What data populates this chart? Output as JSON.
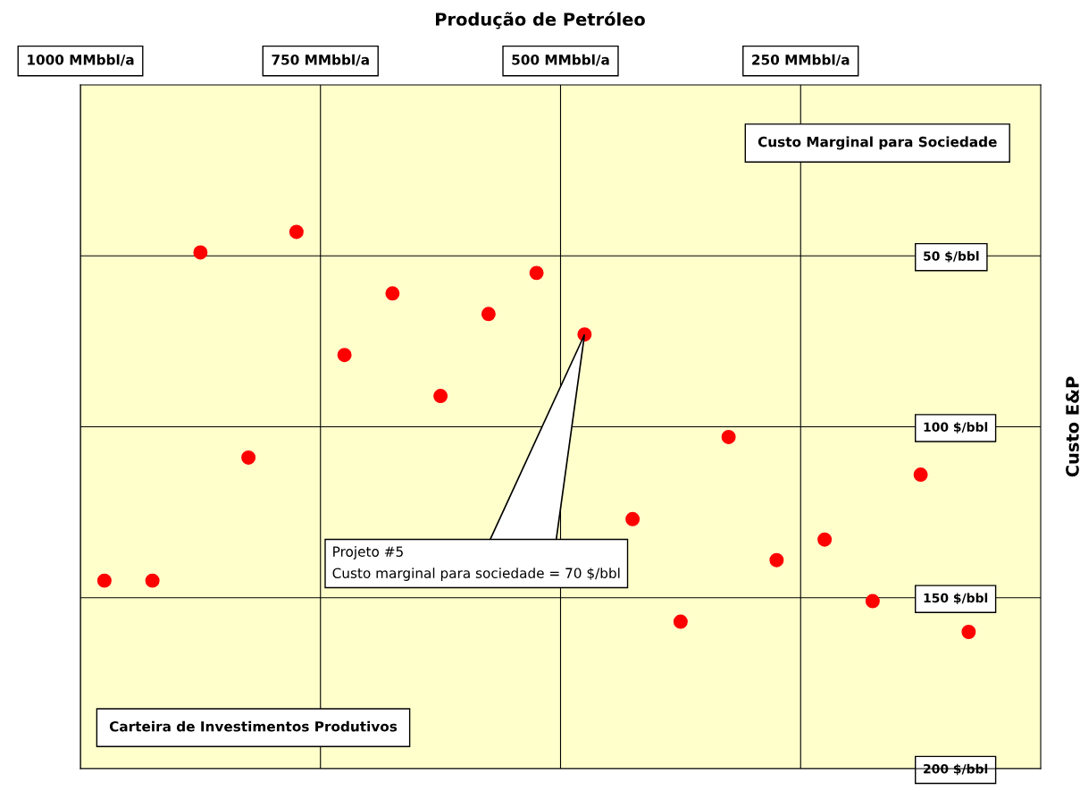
{
  "chart_data": {
    "type": "scatter",
    "title": "Produção de Petróleo",
    "ylabel": "Custo E&P",
    "x": [
      975,
      925,
      875,
      825,
      775,
      725,
      675,
      625,
      575,
      525,
      475,
      425,
      375,
      325,
      275,
      225,
      175,
      125,
      75
    ],
    "series": [
      {
        "color": "#ff0000",
        "values": [
          145,
          145,
          49,
          109,
          43,
          79,
          61,
          91,
          67,
          55,
          73,
          127,
          157,
          103,
          139,
          133,
          151,
          114,
          160
        ]
      }
    ],
    "xlim": [
      1000,
      0
    ],
    "ylim": [
      200,
      0
    ],
    "xticks": [
      {
        "value": 1000,
        "label": "1000 MMbbl/a"
      },
      {
        "value": 750,
        "label": "750 MMbbl/a"
      },
      {
        "value": 500,
        "label": "500 MMbbl/a"
      },
      {
        "value": 250,
        "label": "250 MMbbl/a"
      }
    ],
    "yticks": [
      {
        "value": 50,
        "label": "50 $/bbl"
      },
      {
        "value": 100,
        "label": "100 $/bbl"
      },
      {
        "value": 150,
        "label": "150 $/bbl"
      },
      {
        "value": 200,
        "label": "200 $/bbl"
      }
    ],
    "grid": true,
    "marker": "circle",
    "legend": false,
    "annotations": [
      {
        "text": "Projeto #5\nCusto marginal para sociedade = 70 $/bbl",
        "x": 475,
        "y": 73
      },
      "Custo Marginal para Sociedade",
      "Carteira de Investimentos Produtivos"
    ]
  }
}
